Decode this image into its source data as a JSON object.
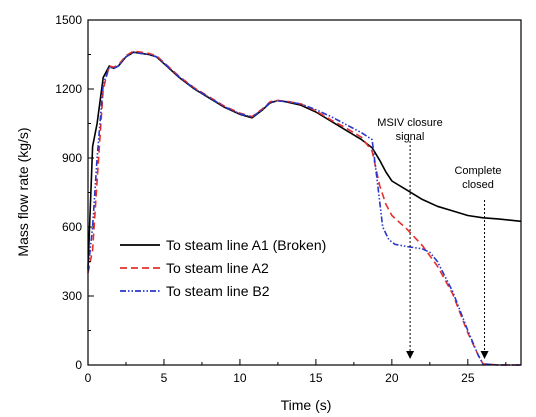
{
  "chart_data": {
    "type": "line",
    "xlabel": "Time (s)",
    "ylabel": "Mass flow rate (kg/s)",
    "xlim": [
      0,
      28.5
    ],
    "ylim": [
      0,
      1500
    ],
    "xticks": [
      0,
      5,
      10,
      15,
      20,
      25
    ],
    "yticks": [
      0,
      300,
      600,
      900,
      1200,
      1500
    ],
    "grid": false,
    "legend_position": "lower-left",
    "series": [
      {
        "name": "To steam line A1 (Broken)",
        "color": "#000000",
        "dash": "solid",
        "x": [
          0,
          0.3,
          0.6,
          1.0,
          1.4,
          1.7,
          2.0,
          2.5,
          3.0,
          3.5,
          4.0,
          4.5,
          5.0,
          6.0,
          7.0,
          8.0,
          9.0,
          10.0,
          10.8,
          11.5,
          12.0,
          12.5,
          13.0,
          14.0,
          15.0,
          16.0,
          17.0,
          18.0,
          18.7,
          19.2,
          19.6,
          20.0,
          21.0,
          22.0,
          23.0,
          24.0,
          25.0,
          26.0,
          27.0,
          28.5
        ],
        "y": [
          420,
          950,
          1050,
          1250,
          1300,
          1290,
          1300,
          1340,
          1360,
          1355,
          1350,
          1340,
          1310,
          1250,
          1200,
          1160,
          1120,
          1090,
          1075,
          1110,
          1140,
          1150,
          1145,
          1130,
          1100,
          1060,
          1020,
          980,
          945,
          890,
          840,
          800,
          760,
          720,
          690,
          670,
          650,
          640,
          635,
          625
        ]
      },
      {
        "name": "To steam line A2",
        "color": "#e8302a",
        "dash": "dashed",
        "x": [
          0,
          0.3,
          0.6,
          1.0,
          1.4,
          1.7,
          2.0,
          2.5,
          3.0,
          3.5,
          4.0,
          4.5,
          5.0,
          6.0,
          7.0,
          8.0,
          9.0,
          10.0,
          10.8,
          11.5,
          12.0,
          12.5,
          13.0,
          14.0,
          15.0,
          16.0,
          17.0,
          18.0,
          18.7,
          19.2,
          19.6,
          20.0,
          21.0,
          22.0,
          23.0,
          24.0,
          25.0,
          25.7,
          26.0,
          27.0,
          28.5
        ],
        "y": [
          400,
          500,
          800,
          1200,
          1300,
          1295,
          1305,
          1345,
          1365,
          1360,
          1355,
          1345,
          1315,
          1255,
          1205,
          1165,
          1125,
          1095,
          1080,
          1115,
          1145,
          1150,
          1148,
          1135,
          1105,
          1065,
          1030,
          990,
          930,
          780,
          700,
          650,
          590,
          520,
          430,
          310,
          140,
          40,
          5,
          0,
          0
        ]
      },
      {
        "name": "To steam line B2",
        "color": "#2a38c8",
        "dash": "dashdotdot",
        "x": [
          0,
          0.3,
          0.6,
          1.0,
          1.4,
          1.7,
          2.0,
          2.5,
          3.0,
          3.5,
          4.0,
          4.5,
          5.0,
          6.0,
          7.0,
          8.0,
          9.0,
          10.0,
          10.8,
          11.5,
          12.0,
          12.5,
          13.0,
          14.0,
          15.0,
          16.0,
          17.0,
          18.0,
          18.7,
          19.0,
          19.4,
          19.8,
          20.2,
          21.0,
          22.0,
          22.5,
          23.0,
          24.0,
          25.0,
          25.7,
          26.0,
          27.0,
          28.5
        ],
        "y": [
          410,
          600,
          900,
          1220,
          1295,
          1290,
          1300,
          1340,
          1360,
          1355,
          1350,
          1340,
          1312,
          1252,
          1202,
          1162,
          1122,
          1092,
          1078,
          1112,
          1142,
          1148,
          1146,
          1135,
          1110,
          1080,
          1045,
          1010,
          980,
          820,
          600,
          545,
          525,
          515,
          505,
          490,
          450,
          320,
          150,
          40,
          5,
          0,
          0
        ]
      }
    ],
    "annotations": [
      {
        "lines": [
          "MSIV closure",
          "signal"
        ],
        "arrow_x": 21.2
      },
      {
        "lines": [
          "Complete",
          "closed"
        ],
        "arrow_x": 26.1
      }
    ]
  }
}
